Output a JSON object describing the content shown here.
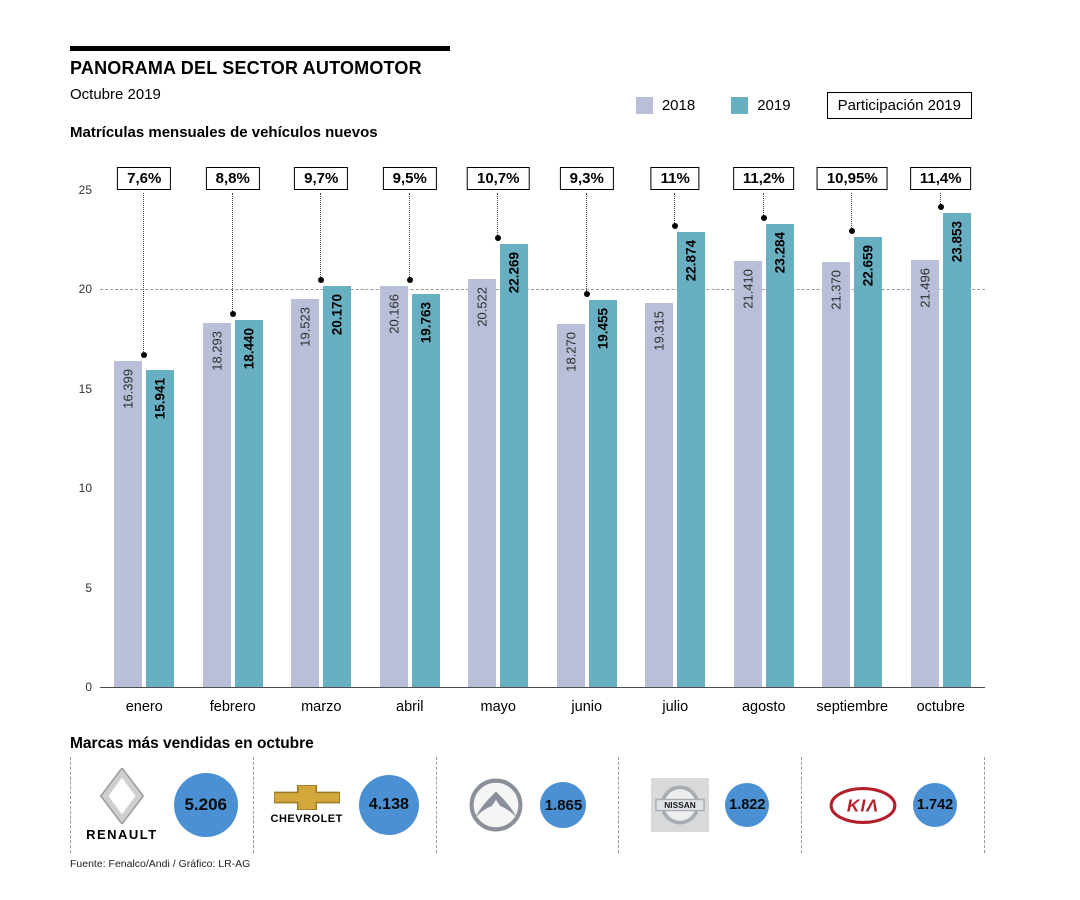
{
  "header": {
    "title": "PANORAMA DEL SECTOR AUTOMOTOR",
    "subtitle": "Octubre 2019",
    "legend": [
      {
        "label": "2018",
        "color": "#b9bfd9"
      },
      {
        "label": "2019",
        "color": "#67afc1"
      }
    ],
    "participation_label": "Participación 2019"
  },
  "chart_title": "Matrículas mensuales de vehículos nuevos",
  "chart_data": {
    "type": "bar",
    "title": "Matrículas mensuales de vehículos nuevos",
    "categories": [
      "enero",
      "febrero",
      "marzo",
      "abril",
      "mayo",
      "junio",
      "julio",
      "agosto",
      "septiembre",
      "octubre"
    ],
    "series": [
      {
        "name": "2018",
        "color": "#b9bfd9",
        "values": [
          16399,
          18293,
          19523,
          20166,
          20522,
          18270,
          19315,
          21410,
          21370,
          21496
        ],
        "labels": [
          "16.399",
          "18.293",
          "19.523",
          "20.166",
          "20.522",
          "18.270",
          "19.315",
          "21.410",
          "21.370",
          "21.496"
        ]
      },
      {
        "name": "2019",
        "color": "#67afc1",
        "values": [
          15941,
          18440,
          20170,
          19763,
          22269,
          19455,
          22874,
          23284,
          22659,
          23853
        ],
        "labels": [
          "15.941",
          "18.440",
          "20.170",
          "19.763",
          "22.269",
          "19.455",
          "22.874",
          "23.284",
          "22.659",
          "23.853"
        ]
      }
    ],
    "participation": [
      "7,6%",
      "8,8%",
      "9,7%",
      "9,5%",
      "10,7%",
      "9,3%",
      "11%",
      "11,2%",
      "10,95%",
      "11,4%"
    ],
    "y_ticks": [
      0,
      5,
      10,
      15,
      20,
      25
    ],
    "y_max": 25,
    "unit_divisor": 1000,
    "dashed_line_at": 20,
    "legend_position": "top-right",
    "grid": "dashed reference line at 20 only"
  },
  "brands": {
    "title": "Marcas más vendidas en octubre",
    "accent_color": "#4a90d2",
    "items": [
      {
        "name": "Renault",
        "wordmark": "RENAULT",
        "value": "5.206"
      },
      {
        "name": "Chevrolet",
        "wordmark": "CHEVROLET",
        "value": "4.138"
      },
      {
        "name": "Mazda",
        "wordmark": "",
        "value": "1.865"
      },
      {
        "name": "Nissan",
        "wordmark": "NISSAN",
        "value": "1.822"
      },
      {
        "name": "Kia",
        "wordmark": "KIΛ",
        "value": "1.742"
      }
    ]
  },
  "footer": {
    "source": "Fuente: Fenalco/Andi / Gráfico: LR-AG"
  }
}
